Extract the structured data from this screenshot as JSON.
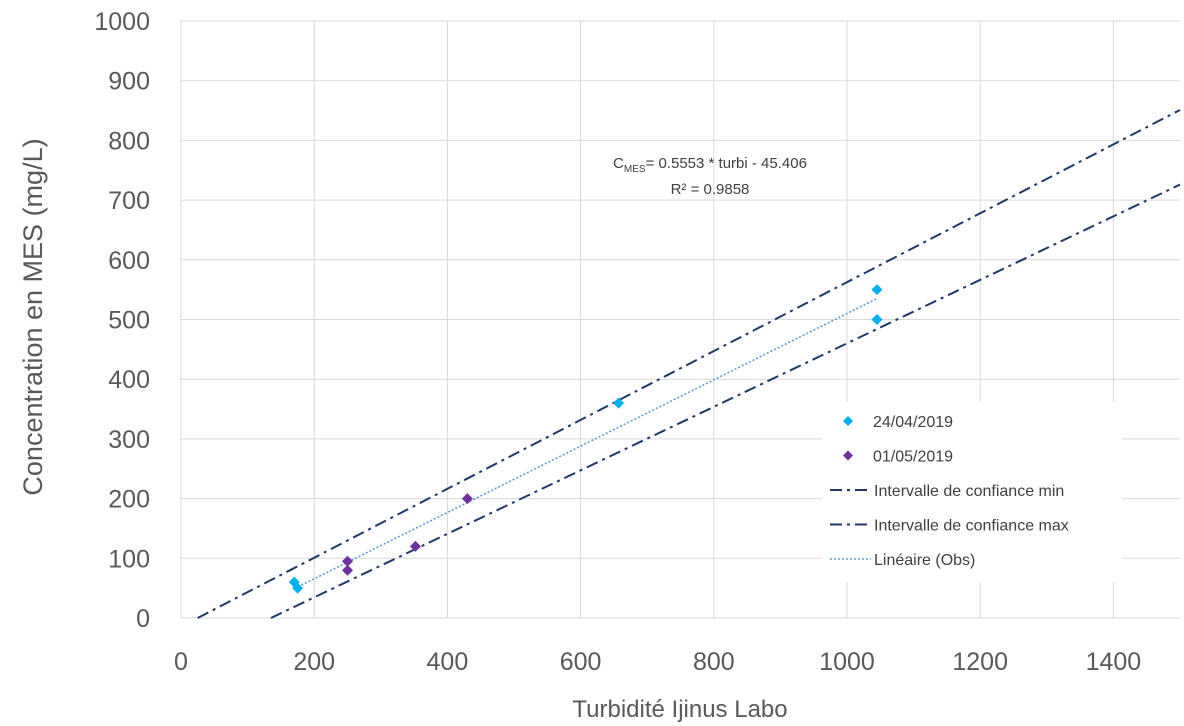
{
  "chart_data": {
    "type": "scatter",
    "title": "",
    "xlabel": "Turbidité Ijinus Labo",
    "ylabel": "Concentration en MES (mg/L)",
    "xlim": [
      0,
      1500
    ],
    "ylim": [
      0,
      1000
    ],
    "xticks": [
      "0",
      "200",
      "400",
      "600",
      "800",
      "1000",
      "1200",
      "1400"
    ],
    "yticks": [
      "0",
      "100",
      "200",
      "300",
      "400",
      "500",
      "600",
      "700",
      "800",
      "900",
      "1000"
    ],
    "grid": true,
    "legend_position": "right",
    "annotation": {
      "c_prefix": "C",
      "c_subscript": "MES",
      "equation_rest": "= 0.5553 * turbi - 45.406",
      "r2": "R² = 0.9858"
    },
    "series": [
      {
        "name": "24/04/2019",
        "kind": "scatter",
        "marker": "diamond",
        "color": "#00B0F0",
        "points": [
          [
            170,
            60
          ],
          [
            175,
            50
          ],
          [
            657,
            360
          ],
          [
            1045,
            550
          ],
          [
            1045,
            500
          ]
        ]
      },
      {
        "name": "01/05/2019",
        "kind": "scatter",
        "marker": "diamond",
        "color": "#7030A0",
        "points": [
          [
            250,
            95
          ],
          [
            250,
            80
          ],
          [
            352,
            120
          ],
          [
            430,
            200
          ]
        ]
      },
      {
        "name": "Intervalle de confiance min",
        "kind": "line",
        "style": "dash-dot",
        "color": "#1F3864",
        "points": [
          [
            25,
            0
          ],
          [
            1500,
            851
          ]
        ]
      },
      {
        "name": "Intervalle de confiance max",
        "kind": "line",
        "style": "dash-dot",
        "color": "#1F3864",
        "points": [
          [
            135,
            0
          ],
          [
            1500,
            726
          ]
        ]
      },
      {
        "name": "Linéaire (Obs)",
        "kind": "line",
        "style": "dotted",
        "color": "#5B9BD5",
        "points": [
          [
            170,
            49
          ],
          [
            1045,
            535
          ]
        ]
      }
    ]
  }
}
